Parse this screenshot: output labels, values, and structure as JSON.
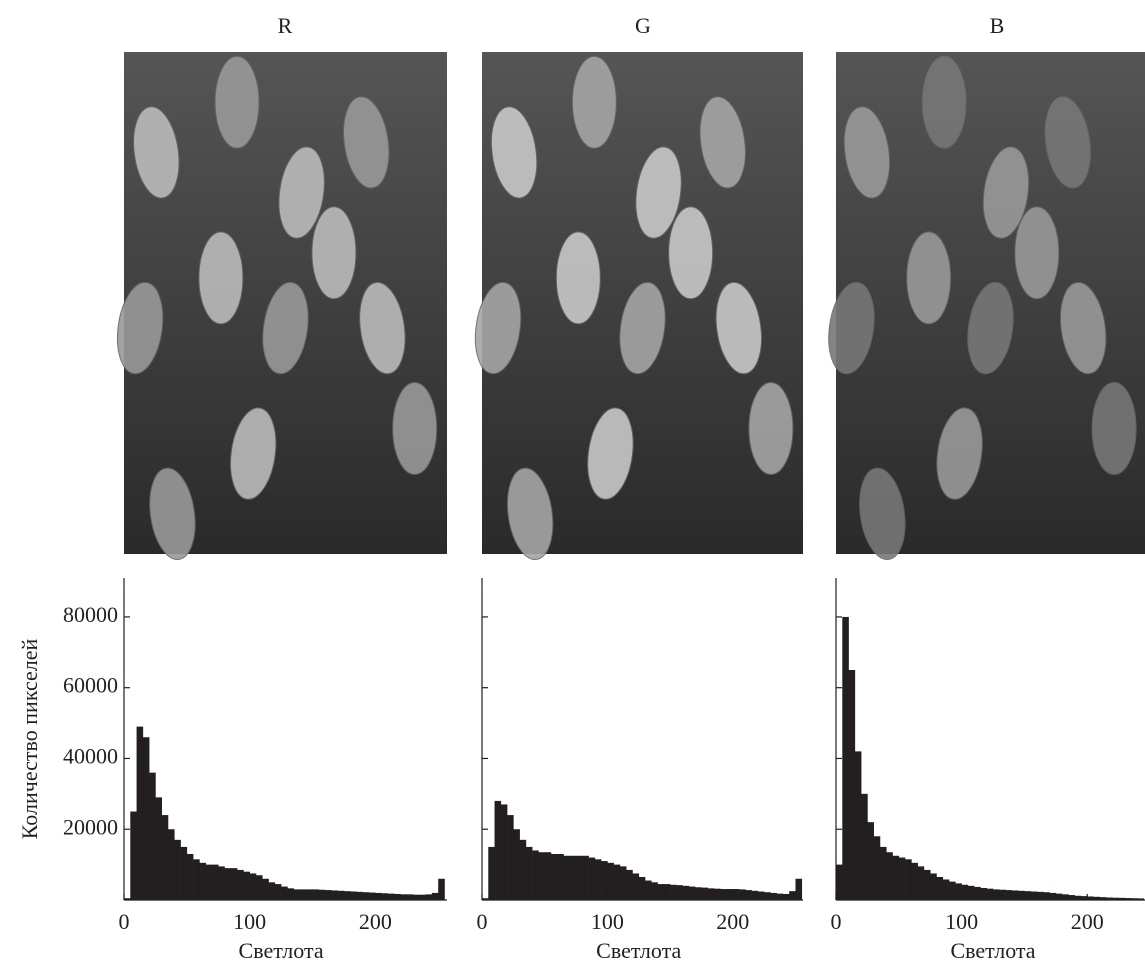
{
  "chart_data": [
    {
      "type": "histogram",
      "title": "R",
      "x_label": "Светлота",
      "y_label": "Количество пикселей",
      "bins": [
        0,
        5,
        10,
        15,
        20,
        25,
        30,
        35,
        40,
        45,
        50,
        55,
        60,
        65,
        70,
        75,
        80,
        85,
        90,
        95,
        100,
        105,
        110,
        115,
        120,
        125,
        130,
        135,
        140,
        145,
        150,
        155,
        160,
        165,
        170,
        175,
        180,
        185,
        190,
        195,
        200,
        205,
        210,
        215,
        220,
        225,
        230,
        235,
        240,
        245,
        250,
        255
      ],
      "values": [
        500,
        25000,
        49000,
        46000,
        36000,
        29000,
        24000,
        20000,
        17000,
        15000,
        13000,
        11500,
        10500,
        10000,
        10000,
        9500,
        9000,
        9000,
        8500,
        8000,
        7500,
        7000,
        6000,
        5000,
        4500,
        3800,
        3300,
        3000,
        3000,
        3000,
        3000,
        2900,
        2800,
        2700,
        2600,
        2500,
        2400,
        2300,
        2200,
        2100,
        2000,
        1900,
        1800,
        1700,
        1600,
        1600,
        1500,
        1500,
        1600,
        2000,
        6000
      ],
      "color": "#231f20",
      "xlim": [
        0,
        257
      ],
      "xticks": [
        0,
        100,
        200
      ],
      "ylim": [
        0,
        91000
      ],
      "yticks": [
        20000,
        40000,
        60000,
        80000
      ],
      "ytick_labels": true
    },
    {
      "type": "histogram",
      "title": "G",
      "x_label": "Светлота",
      "bins": [
        0,
        5,
        10,
        15,
        20,
        25,
        30,
        35,
        40,
        45,
        50,
        55,
        60,
        65,
        70,
        75,
        80,
        85,
        90,
        95,
        100,
        105,
        110,
        115,
        120,
        125,
        130,
        135,
        140,
        145,
        150,
        155,
        160,
        165,
        170,
        175,
        180,
        185,
        190,
        195,
        200,
        205,
        210,
        215,
        220,
        225,
        230,
        235,
        240,
        245,
        250,
        255
      ],
      "values": [
        500,
        15000,
        28000,
        27000,
        24000,
        20000,
        17000,
        15000,
        14000,
        13500,
        13500,
        13000,
        13000,
        12500,
        12500,
        12500,
        12500,
        12000,
        11500,
        11000,
        10500,
        10000,
        9500,
        8500,
        7500,
        6500,
        5500,
        5000,
        4500,
        4500,
        4300,
        4200,
        4000,
        3800,
        3600,
        3500,
        3300,
        3200,
        3100,
        3100,
        3100,
        3000,
        2800,
        2600,
        2400,
        2200,
        2000,
        1800,
        1700,
        2500,
        6000
      ],
      "color": "#231f20",
      "xlim": [
        0,
        256
      ],
      "xticks": [
        0,
        100,
        200
      ],
      "ylim": [
        0,
        91000
      ],
      "yticks": [
        20000,
        40000,
        60000,
        80000
      ],
      "ytick_labels": false
    },
    {
      "type": "histogram",
      "title": "B",
      "x_label": "Светлота",
      "bins": [
        0,
        5,
        10,
        15,
        20,
        25,
        30,
        35,
        40,
        45,
        50,
        55,
        60,
        65,
        70,
        75,
        80,
        85,
        90,
        95,
        100,
        105,
        110,
        115,
        120,
        125,
        130,
        135,
        140,
        145,
        150,
        155,
        160,
        165,
        170,
        175,
        180,
        185,
        190,
        195,
        200,
        205,
        210,
        215,
        220,
        225,
        230,
        235,
        240,
        245
      ],
      "values": [
        10000,
        80000,
        65000,
        42000,
        30000,
        22000,
        18000,
        15000,
        13500,
        12500,
        12000,
        11500,
        10500,
        9500,
        8500,
        7500,
        6500,
        5800,
        5200,
        4700,
        4300,
        4000,
        3700,
        3400,
        3200,
        3000,
        2900,
        2800,
        2700,
        2600,
        2500,
        2400,
        2300,
        2200,
        2000,
        1800,
        1600,
        1400,
        1200,
        1100,
        1000,
        900,
        800,
        700,
        650,
        600,
        550,
        500,
        450
      ],
      "color": "#231f20",
      "xlim": [
        0,
        246
      ],
      "xticks": [
        0,
        100,
        200
      ],
      "ylim": [
        0,
        91000
      ],
      "yticks": [
        20000,
        40000,
        60000,
        80000
      ],
      "ytick_labels": false
    }
  ]
}
